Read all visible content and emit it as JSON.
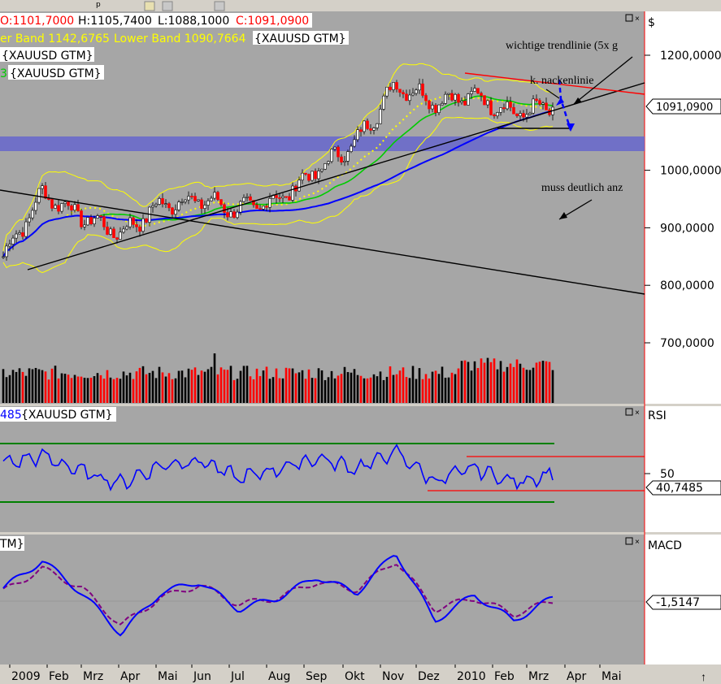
{
  "window": {
    "menu_fragment": "p",
    "price_pane": {
      "ohlc": {
        "open": "O:1101,7000",
        "high": "H:1105,7400",
        "low": "L:1088,1000",
        "close": "C:1091,0900"
      },
      "legend_bollinger": {
        "upper": "er Band 1142,6765",
        "lower": "Lower Band 1090,7664",
        "symbol": "{XAUUSD GTM}"
      },
      "legend_ma1": "{XAUUSD GTM}",
      "legend_ma2_prefix": "3",
      "legend_ma2": "{XAUUSD GTM}",
      "axis_currency": "$",
      "last_price": "1091,0900",
      "annotations": {
        "trendline": "wichtige trendlinie (5x g",
        "neckline": "k. nackenlinie",
        "must": "muss deutlich anz"
      }
    },
    "rsi_pane": {
      "legend_value": "485",
      "legend_symbol": "{XAUUSD GTM}",
      "title": "RSI",
      "last": "40,7485"
    },
    "macd_pane": {
      "legend": "TM}",
      "title": "MACD",
      "last": "-1,5147"
    },
    "time_axis_labels": [
      "2009",
      "Feb",
      "Mrz",
      "Apr",
      "Mai",
      "Jun",
      "Jul",
      "Aug",
      "Sep",
      "Okt",
      "Nov",
      "Dez",
      "2010",
      "Feb",
      "Mrz",
      "Apr",
      "Mai"
    ]
  },
  "colors": {
    "bg": "#a6a6a6",
    "frame": "#d4d0c8",
    "bull": "#000000",
    "bear": "#ff0000",
    "bollinger": "#ffff00",
    "ma_green": "#00cc00",
    "ma_blue": "#0000ff",
    "band": "#6666cc",
    "rsi": "#0000ff",
    "rsi_levels": "#008000",
    "macd": "#0000ff",
    "macd_signal": "#800080"
  },
  "chart_data": [
    {
      "type": "line",
      "pane": "price",
      "title": "",
      "ylabel": "",
      "x": [
        "2009-01",
        "2009-02",
        "2009-03",
        "2009-04",
        "2009-05",
        "2009-06",
        "2009-07",
        "2009-08",
        "2009-09",
        "2009-10",
        "2009-11",
        "2009-12",
        "2010-01",
        "2010-02",
        "2010-03"
      ],
      "yticks": [
        700,
        800,
        900,
        1000,
        1200
      ],
      "ylim": [
        630,
        1240
      ],
      "series": [
        {
          "values": [
            850,
            960,
            920,
            890,
            940,
            950,
            930,
            950,
            1000,
            1050,
            1150,
            1120,
            1130,
            1100,
            1110
          ]
        }
      ],
      "grid": false,
      "legend": "top-left"
    },
    {
      "type": "line",
      "pane": "rsi",
      "title": "RSI",
      "x": [
        "2009-01",
        "2009-02",
        "2009-03",
        "2009-04",
        "2009-05",
        "2009-06",
        "2009-07",
        "2009-08",
        "2009-09",
        "2009-10",
        "2009-11",
        "2009-12",
        "2010-01",
        "2010-02",
        "2010-03"
      ],
      "yticks": [
        50
      ],
      "series": [
        {
          "values": [
            60,
            68,
            52,
            40,
            58,
            64,
            45,
            55,
            66,
            55,
            72,
            42,
            56,
            41,
            50
          ]
        }
      ],
      "grid": false
    },
    {
      "type": "line",
      "pane": "macd",
      "title": "MACD",
      "x": [
        "2009-01",
        "2009-02",
        "2009-03",
        "2009-04",
        "2009-05",
        "2009-06",
        "2009-07",
        "2009-08",
        "2009-09",
        "2009-10",
        "2009-11",
        "2009-12",
        "2010-01",
        "2010-02",
        "2010-03"
      ],
      "series": [
        {
          "values": [
            8,
            25,
            5,
            -20,
            5,
            12,
            -5,
            2,
            15,
            5,
            30,
            -12,
            4,
            -12,
            2
          ]
        },
        {
          "values": [
            6,
            20,
            8,
            -15,
            2,
            10,
            -2,
            2,
            12,
            7,
            25,
            -5,
            2,
            -8,
            0
          ]
        }
      ],
      "grid": false
    }
  ]
}
